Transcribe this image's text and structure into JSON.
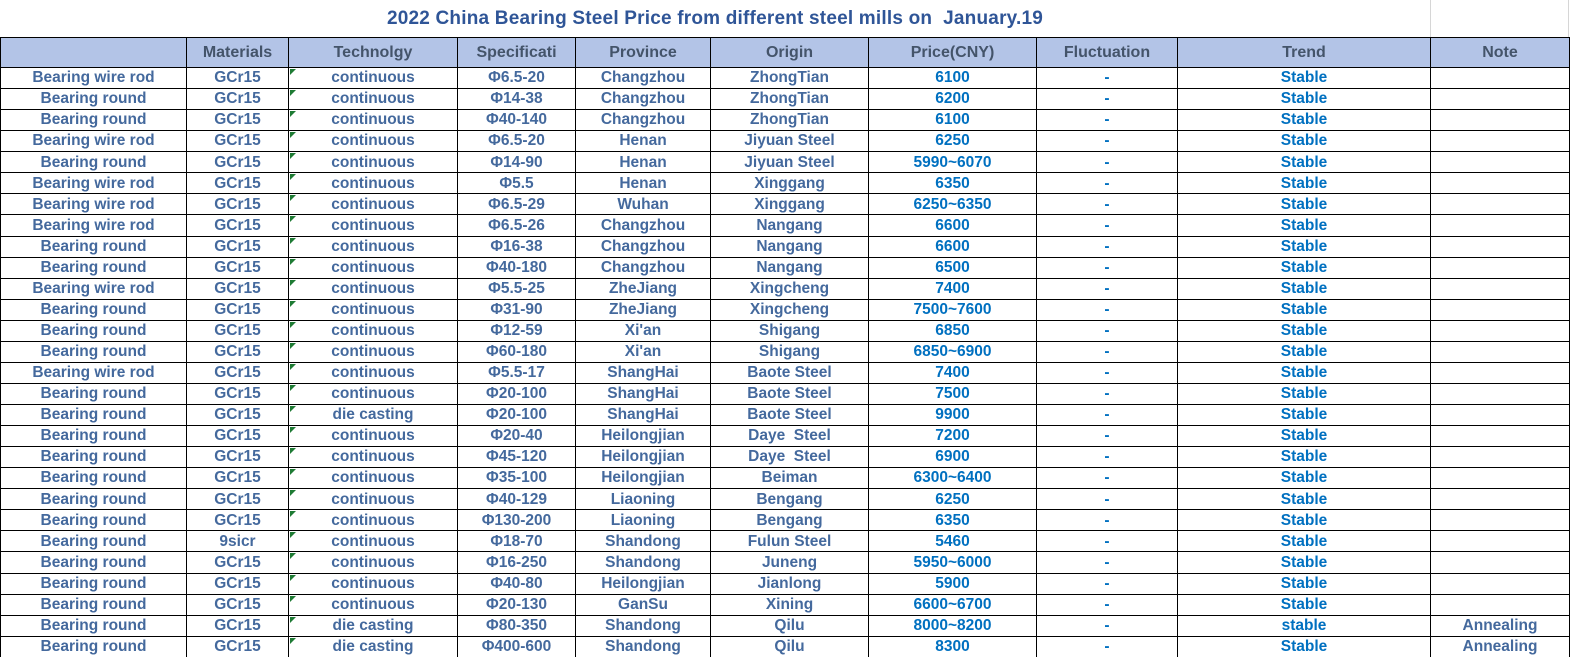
{
  "title": "2022 China Bearing Steel Price from different steel mills on  January.19",
  "colors": {
    "title_text": "#2F5597",
    "header_bg": "#B3C4E7",
    "header_text": "#44546A",
    "data_text_muted_blue": "#44699D",
    "data_text_vivid_blue": "#0070C0",
    "grid_border": "#000000",
    "title_gridline_gray": "#D6D6D6",
    "error_indicator_green": "#1E7B34"
  },
  "columns": [
    {
      "key": "product",
      "label": ""
    },
    {
      "key": "materials",
      "label": "Materials"
    },
    {
      "key": "technology",
      "label": "Technolgy"
    },
    {
      "key": "specification",
      "label": "Specificati"
    },
    {
      "key": "province",
      "label": "Province"
    },
    {
      "key": "origin",
      "label": "Origin"
    },
    {
      "key": "price",
      "label": "Price(CNY)"
    },
    {
      "key": "fluctuation",
      "label": "Fluctuation"
    },
    {
      "key": "trend",
      "label": "Trend"
    },
    {
      "key": "note",
      "label": "Note"
    }
  ],
  "rows": [
    [
      "Bearing wire rod",
      "GCr15",
      "continuous",
      "Φ6.5-20",
      "Changzhou",
      "ZhongTian",
      "6100",
      "-",
      "Stable",
      ""
    ],
    [
      "Bearing round",
      "GCr15",
      "continuous",
      "Φ14-38",
      "Changzhou",
      "ZhongTian",
      "6200",
      "-",
      "Stable",
      ""
    ],
    [
      "Bearing round",
      "GCr15",
      "continuous",
      "Φ40-140",
      "Changzhou",
      "ZhongTian",
      "6100",
      "-",
      "Stable",
      ""
    ],
    [
      "Bearing wire rod",
      "GCr15",
      "continuous",
      "Φ6.5-20",
      "Henan",
      "Jiyuan Steel",
      "6250",
      "-",
      "Stable",
      ""
    ],
    [
      "Bearing round",
      "GCr15",
      "continuous",
      "Φ14-90",
      "Henan",
      "Jiyuan Steel",
      "5990~6070",
      "-",
      "Stable",
      ""
    ],
    [
      "Bearing wire rod",
      "GCr15",
      "continuous",
      "Φ5.5",
      "Henan",
      "Xinggang",
      "6350",
      "-",
      "Stable",
      ""
    ],
    [
      "Bearing wire rod",
      "GCr15",
      "continuous",
      "Φ6.5-29",
      "Wuhan",
      "Xinggang",
      "6250~6350",
      "-",
      "Stable",
      ""
    ],
    [
      "Bearing wire rod",
      "GCr15",
      "continuous",
      "Φ6.5-26",
      "Changzhou",
      "Nangang",
      "6600",
      "-",
      "Stable",
      ""
    ],
    [
      "Bearing round",
      "GCr15",
      "continuous",
      "Φ16-38",
      "Changzhou",
      "Nangang",
      "6600",
      "-",
      "Stable",
      ""
    ],
    [
      "Bearing round",
      "GCr15",
      "continuous",
      "Φ40-180",
      "Changzhou",
      "Nangang",
      "6500",
      "-",
      "Stable",
      ""
    ],
    [
      "Bearing wire rod",
      "GCr15",
      "continuous",
      "Φ5.5-25",
      "ZheJiang",
      "Xingcheng",
      "7400",
      "-",
      "Stable",
      ""
    ],
    [
      "Bearing round",
      "GCr15",
      "continuous",
      "Φ31-90",
      "ZheJiang",
      "Xingcheng",
      "7500~7600",
      "-",
      "Stable",
      ""
    ],
    [
      "Bearing round",
      "GCr15",
      "continuous",
      "Φ12-59",
      "Xi'an",
      "Shigang",
      "6850",
      "-",
      "Stable",
      ""
    ],
    [
      "Bearing round",
      "GCr15",
      "continuous",
      "Φ60-180",
      "Xi'an",
      "Shigang",
      "6850~6900",
      "-",
      "Stable",
      ""
    ],
    [
      "Bearing wire rod",
      "GCr15",
      "continuous",
      "Φ5.5-17",
      "ShangHai",
      "Baote Steel",
      "7400",
      "-",
      "Stable",
      ""
    ],
    [
      "Bearing round",
      "GCr15",
      "continuous",
      "Φ20-100",
      "ShangHai",
      "Baote Steel",
      "7500",
      "-",
      "Stable",
      ""
    ],
    [
      "Bearing round",
      "GCr15",
      "die casting",
      "Φ20-100",
      "ShangHai",
      "Baote Steel",
      "9900",
      "-",
      "Stable",
      ""
    ],
    [
      "Bearing round",
      "GCr15",
      "continuous",
      "Φ20-40",
      "Heilongjian",
      "Daye  Steel",
      "7200",
      "-",
      "Stable",
      ""
    ],
    [
      "Bearing round",
      "GCr15",
      "continuous",
      "Φ45-120",
      "Heilongjian",
      "Daye  Steel",
      "6900",
      "-",
      "Stable",
      ""
    ],
    [
      "Bearing round",
      "GCr15",
      "continuous",
      "Φ35-100",
      "Heilongjian",
      "Beiman",
      "6300~6400",
      "-",
      "Stable",
      ""
    ],
    [
      "Bearing round",
      "GCr15",
      "continuous",
      "Φ40-129",
      "Liaoning",
      "Bengang",
      "6250",
      "-",
      "Stable",
      ""
    ],
    [
      "Bearing round",
      "GCr15",
      "continuous",
      "Φ130-200",
      "Liaoning",
      "Bengang",
      "6350",
      "-",
      "Stable",
      ""
    ],
    [
      "Bearing round",
      "9sicr",
      "continuous",
      "Φ18-70",
      "Shandong",
      "Fulun Steel",
      "5460",
      "-",
      "Stable",
      ""
    ],
    [
      "Bearing round",
      "GCr15",
      "continuous",
      "Φ16-250",
      "Shandong",
      "Juneng",
      "5950~6000",
      "-",
      "Stable",
      ""
    ],
    [
      "Bearing round",
      "GCr15",
      "continuous",
      "Φ40-80",
      "Heilongjian",
      "Jianlong",
      "5900",
      "-",
      "Stable",
      ""
    ],
    [
      "Bearing round",
      "GCr15",
      "continuous",
      "Φ20-130",
      "GanSu",
      "Xining",
      "6600~6700",
      "-",
      "Stable",
      ""
    ],
    [
      "Bearing round",
      "GCr15",
      "die casting",
      "Φ80-350",
      "Shandong",
      "Qilu",
      "8000~8200",
      "-",
      "stable",
      "Annealing"
    ],
    [
      "Bearing round",
      "GCr15",
      "die casting",
      "Φ400-600",
      "Shandong",
      "Qilu",
      "8300",
      "-",
      "Stable",
      "Annealing"
    ]
  ]
}
